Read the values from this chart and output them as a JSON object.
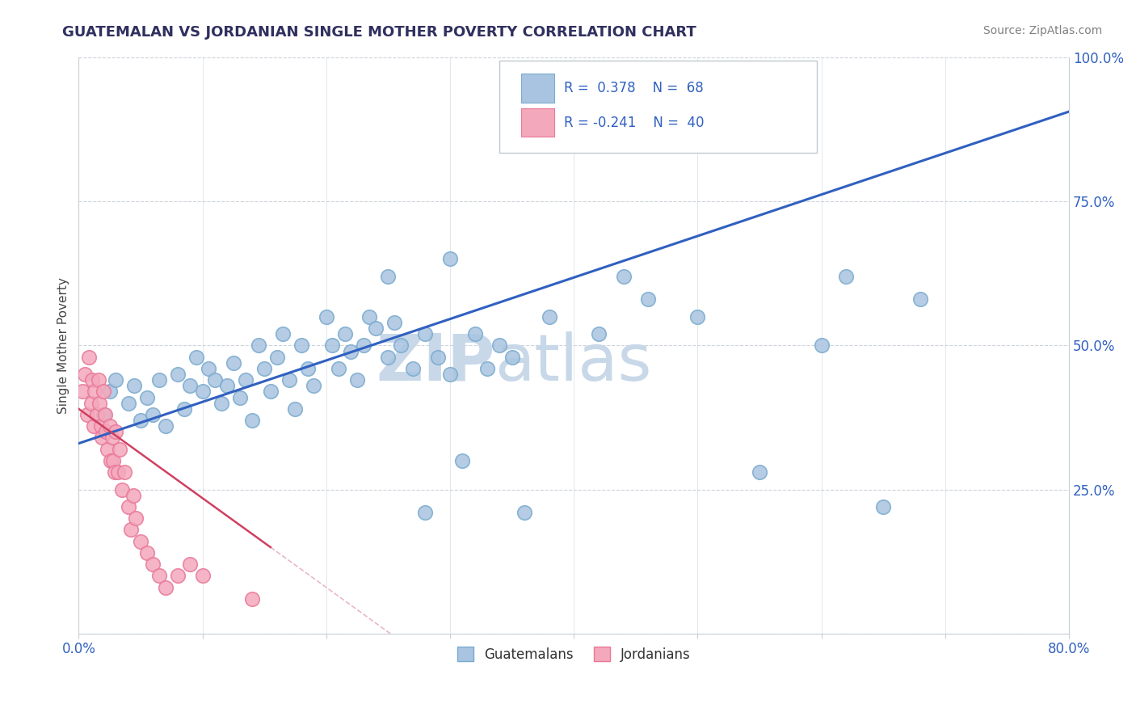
{
  "title": "GUATEMALAN VS JORDANIAN SINGLE MOTHER POVERTY CORRELATION CHART",
  "source": "Source: ZipAtlas.com",
  "ylabel": "Single Mother Poverty",
  "yticks": [
    0.0,
    0.25,
    0.5,
    0.75,
    1.0
  ],
  "ytick_labels": [
    "",
    "25.0%",
    "50.0%",
    "75.0%",
    "100.0%"
  ],
  "legend_guatemalans": "Guatemalans",
  "legend_jordanians": "Jordanians",
  "R_guatemalans": 0.378,
  "N_guatemalans": 68,
  "R_jordanians": -0.241,
  "N_jordanians": 40,
  "blue_dot_color": "#A8C4E0",
  "blue_dot_edge": "#7AAACE",
  "pink_dot_color": "#F4A8BC",
  "pink_dot_edge": "#E87898",
  "blue_line_color": "#3060C0",
  "pink_line_color": "#D04060",
  "pink_line_faint": "#E8B8C8",
  "watermark": "ZIPatlas",
  "watermark_color": "#C8D8E8",
  "background_color": "#FFFFFF",
  "legend_R_color": "#3060C0",
  "legend_N_color": "#3060C0",
  "title_color": "#303060",
  "source_color": "#808080",
  "ytick_color": "#3060C0",
  "xtick_color": "#3060C0",
  "grid_color": "#C8D0D8",
  "blue_line_intercept": 0.33,
  "blue_line_slope": 0.72,
  "pink_line_intercept": 0.39,
  "pink_line_slope": -1.55,
  "guat_x": [
    0.02,
    0.025,
    0.03,
    0.04,
    0.045,
    0.05,
    0.055,
    0.06,
    0.065,
    0.07,
    0.08,
    0.085,
    0.09,
    0.095,
    0.1,
    0.105,
    0.11,
    0.115,
    0.12,
    0.125,
    0.13,
    0.135,
    0.14,
    0.145,
    0.15,
    0.155,
    0.16,
    0.165,
    0.17,
    0.175,
    0.18,
    0.185,
    0.19,
    0.2,
    0.205,
    0.21,
    0.215,
    0.22,
    0.225,
    0.23,
    0.235,
    0.24,
    0.25,
    0.255,
    0.26,
    0.27,
    0.28,
    0.29,
    0.3,
    0.31,
    0.32,
    0.33,
    0.34,
    0.35,
    0.36,
    0.25,
    0.28,
    0.3,
    0.38,
    0.42,
    0.44,
    0.46,
    0.5,
    0.55,
    0.6,
    0.62,
    0.65,
    0.68
  ],
  "guat_y": [
    0.38,
    0.42,
    0.44,
    0.4,
    0.43,
    0.37,
    0.41,
    0.38,
    0.44,
    0.36,
    0.45,
    0.39,
    0.43,
    0.48,
    0.42,
    0.46,
    0.44,
    0.4,
    0.43,
    0.47,
    0.41,
    0.44,
    0.37,
    0.5,
    0.46,
    0.42,
    0.48,
    0.52,
    0.44,
    0.39,
    0.5,
    0.46,
    0.43,
    0.55,
    0.5,
    0.46,
    0.52,
    0.49,
    0.44,
    0.5,
    0.55,
    0.53,
    0.48,
    0.54,
    0.5,
    0.46,
    0.52,
    0.48,
    0.45,
    0.3,
    0.52,
    0.46,
    0.5,
    0.48,
    0.21,
    0.62,
    0.21,
    0.65,
    0.55,
    0.52,
    0.62,
    0.58,
    0.55,
    0.28,
    0.5,
    0.62,
    0.22,
    0.58
  ],
  "jord_x": [
    0.003,
    0.005,
    0.007,
    0.008,
    0.01,
    0.011,
    0.012,
    0.013,
    0.015,
    0.016,
    0.017,
    0.018,
    0.019,
    0.02,
    0.021,
    0.022,
    0.023,
    0.025,
    0.026,
    0.027,
    0.028,
    0.029,
    0.03,
    0.032,
    0.033,
    0.035,
    0.037,
    0.04,
    0.042,
    0.044,
    0.046,
    0.05,
    0.055,
    0.06,
    0.065,
    0.07,
    0.08,
    0.09,
    0.1,
    0.14
  ],
  "jord_y": [
    0.42,
    0.45,
    0.38,
    0.48,
    0.4,
    0.44,
    0.36,
    0.42,
    0.38,
    0.44,
    0.4,
    0.36,
    0.34,
    0.42,
    0.38,
    0.35,
    0.32,
    0.36,
    0.3,
    0.34,
    0.3,
    0.28,
    0.35,
    0.28,
    0.32,
    0.25,
    0.28,
    0.22,
    0.18,
    0.24,
    0.2,
    0.16,
    0.14,
    0.12,
    0.1,
    0.08,
    0.1,
    0.12,
    0.1,
    0.06
  ]
}
